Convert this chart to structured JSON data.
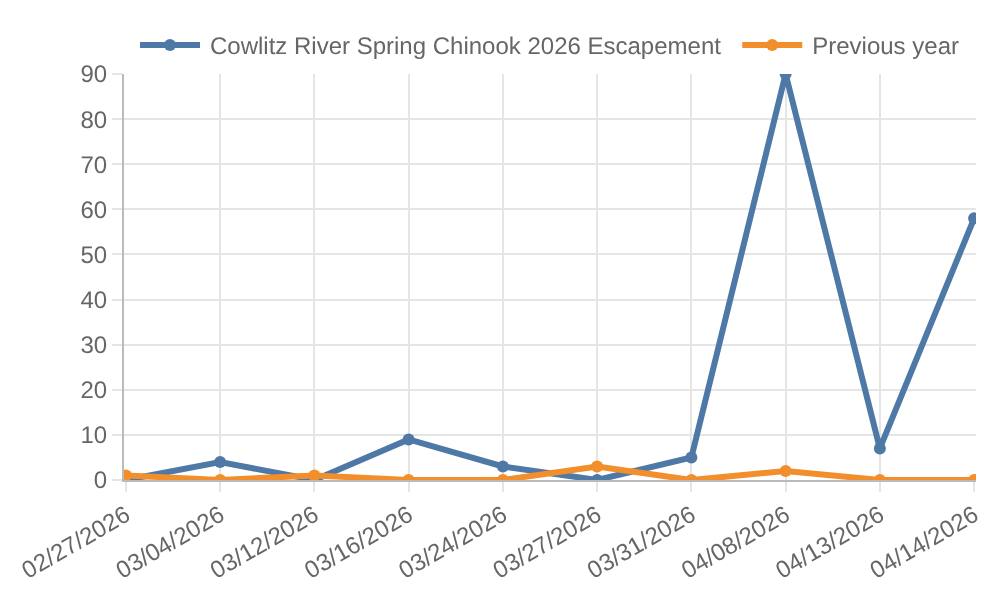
{
  "chart_data": {
    "type": "line",
    "categories": [
      "02/27/2026",
      "03/04/2026",
      "03/12/2026",
      "03/16/2026",
      "03/24/2026",
      "03/27/2026",
      "03/31/2026",
      "04/08/2026",
      "04/13/2026",
      "04/14/2026"
    ],
    "series": [
      {
        "name": "Cowlitz River Spring Chinook 2026 Escapement",
        "color": "#4e79a7",
        "values": [
          0,
          4,
          0,
          9,
          3,
          0,
          5,
          90,
          7,
          58
        ]
      },
      {
        "name": "Previous year",
        "color": "#f28e2b",
        "values": [
          1,
          0,
          1,
          0,
          0,
          3,
          0,
          2,
          0,
          0
        ]
      }
    ],
    "ylim": [
      0,
      90
    ],
    "yticks": [
      0,
      10,
      20,
      30,
      40,
      50,
      60,
      70,
      80,
      90
    ],
    "grid": true,
    "legend": "top",
    "marker": "circle",
    "line_style": "solid"
  }
}
